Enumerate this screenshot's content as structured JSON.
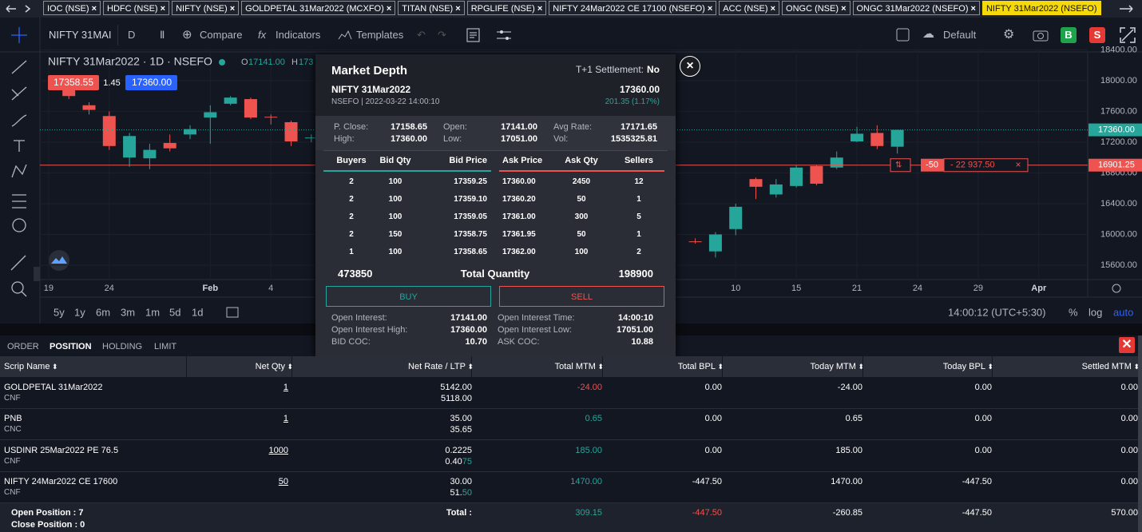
{
  "tabs": [
    "IOC (NSE)",
    "HDFC (NSE)",
    "NIFTY (NSE)",
    "GOLDPETAL 31Mar2022 (MCXFO)",
    "TITAN (NSE)",
    "RPGLIFE (NSE)",
    "NIFTY 24Mar2022 CE 17100 (NSEFO)",
    "ACC (NSE)",
    "ONGC (NSE)",
    "ONGC 31Mar2022 (NSEFO)",
    "NIFTY 31Mar2022 (NSEFO)"
  ],
  "toolbar": {
    "symbol": "NIFTY 31MAI",
    "interval": "D",
    "compare": "Compare",
    "indicators": "Indicators",
    "templates": "Templates",
    "layout": "Default",
    "buy": "B",
    "sell": "S"
  },
  "chart_data": {
    "type": "candlestick",
    "legend": "NIFTY 31Mar2022 · 1D · NSEFO",
    "ohlc": [
      {
        "label": "O",
        "value": "17141.00"
      },
      {
        "label": "H",
        "value": "173"
      }
    ],
    "bid_tag": "17358.55",
    "spread_tag": "1.45",
    "ask_tag": "17360.00",
    "x": [
      1,
      2,
      3,
      4,
      5,
      6,
      7,
      8,
      9,
      10,
      11,
      12,
      13,
      32,
      33,
      34,
      35,
      36,
      37,
      38,
      39,
      40,
      41,
      42
    ],
    "open": [
      17900,
      17680,
      17540,
      17000,
      16990,
      17190,
      17300,
      17520,
      17700,
      17760,
      17530,
      17460,
      17250,
      15910,
      15780,
      16070,
      16720,
      16520,
      16630,
      16890,
      16870,
      17210,
      17320,
      17141
    ],
    "high": [
      17960,
      17720,
      17600,
      17320,
      17180,
      17300,
      17420,
      17680,
      17800,
      17780,
      17560,
      17480,
      17300,
      15950,
      16030,
      16400,
      16740,
      16720,
      16900,
      16900,
      17080,
      17400,
      17420,
      17360
    ],
    "low": [
      17760,
      17560,
      17100,
      16880,
      16850,
      17080,
      17240,
      17180,
      17680,
      17500,
      17430,
      17150,
      17200,
      15880,
      15700,
      15990,
      16460,
      16480,
      16610,
      16640,
      16850,
      17200,
      17110,
      17051
    ],
    "close": [
      17800,
      17620,
      17150,
      17280,
      17100,
      17120,
      17370,
      17590,
      17780,
      17520,
      17520,
      17210,
      17260,
      15900,
      16000,
      16360,
      16620,
      16650,
      16870,
      16660,
      17000,
      17310,
      17150,
      17360
    ],
    "up_color": "#26a69a",
    "down_color": "#ef5350",
    "xlim": [
      -0.43,
      51.42
    ],
    "xticks": [
      {
        "value": 0,
        "label": "19"
      },
      {
        "value": 3,
        "label": "24"
      },
      {
        "value": 8,
        "label": "Feb"
      },
      {
        "value": 11,
        "label": "4"
      },
      {
        "value": 34,
        "label": "10"
      },
      {
        "value": 37,
        "label": "15"
      },
      {
        "value": 40,
        "label": "21"
      },
      {
        "value": 43,
        "label": "24"
      },
      {
        "value": 46,
        "label": "29"
      },
      {
        "value": 49,
        "label": "Apr"
      }
    ],
    "ylim": [
      15413,
      18405
    ],
    "yticks": [
      {
        "value": 18400,
        "label": "18400.00"
      },
      {
        "value": 18000,
        "label": "18000.00"
      },
      {
        "value": 17600,
        "label": "17600.00"
      },
      {
        "value": 17200,
        "label": "17200.00"
      },
      {
        "value": 16800,
        "label": "16800.00"
      },
      {
        "value": 16400,
        "label": "16400.00"
      },
      {
        "value": 16000,
        "label": "16000.00"
      },
      {
        "value": 15600,
        "label": "15600.00"
      }
    ],
    "last_price": {
      "value": 17360,
      "label": "17360.00"
    },
    "position_price": {
      "value": 16901.25,
      "label": "16901.25"
    },
    "position_qty": "-50",
    "position_pnl": "- 22 937.50",
    "ranges": [
      "5y",
      "1y",
      "6m",
      "3m",
      "1m",
      "5d",
      "1d"
    ],
    "time": "14:00:12 (UTC+5:30)",
    "scale_options": [
      "%",
      "log",
      "auto"
    ]
  },
  "market_depth": {
    "title": "Market Depth",
    "settlement_label": "T+1 Settlement:",
    "settlement": "No",
    "symbol": "NIFTY 31Mar2022",
    "ltp": "17360.00",
    "exchange": "NSEFO | 2022-03-22 14:00:10",
    "change": "201.35 (1.17%)",
    "stats": [
      [
        "P. Close:",
        "17158.65"
      ],
      [
        "Open:",
        "17141.00"
      ],
      [
        "Avg Rate:",
        "17171.65"
      ],
      [
        "High:",
        "17360.00"
      ],
      [
        "Low:",
        "17051.00"
      ],
      [
        "Vol:",
        "1535325.81"
      ]
    ],
    "columns": [
      "Buyers",
      "Bid Qty",
      "Bid Price",
      "Ask Price",
      "Ask Qty",
      "Sellers"
    ],
    "rows": [
      [
        "2",
        "100",
        "17359.25",
        "17360.00",
        "2450",
        "12"
      ],
      [
        "2",
        "100",
        "17359.10",
        "17360.20",
        "50",
        "1"
      ],
      [
        "2",
        "100",
        "17359.05",
        "17361.00",
        "300",
        "5"
      ],
      [
        "2",
        "150",
        "17358.75",
        "17361.95",
        "50",
        "1"
      ],
      [
        "1",
        "100",
        "17358.65",
        "17362.00",
        "100",
        "2"
      ]
    ],
    "total_bid": "473850",
    "total_label": "Total Quantity",
    "total_ask": "198900",
    "buy": "BUY",
    "sell": "SELL",
    "oi": [
      [
        "Open Interest:",
        "17141.00"
      ],
      [
        "Open Interest Time:",
        "14:00:10"
      ],
      [
        "Open Interest High:",
        "17360.00"
      ],
      [
        "Open Interest Low:",
        "17051.00"
      ],
      [
        "BID COC:",
        "10.70"
      ],
      [
        "ASK COC:",
        "10.88"
      ]
    ]
  },
  "positions": {
    "tabs": [
      "ORDER",
      "POSITION",
      "HOLDING",
      "LIMIT"
    ],
    "columns": [
      "Scrip Name",
      "Net Qty",
      "Net Rate / LTP",
      "Total MTM",
      "Total BPL",
      "Today MTM",
      "Today BPL",
      "Settled MTM"
    ],
    "rows": [
      {
        "name": "GOLDPETAL 31Mar2022",
        "product": "CNF",
        "net_qty": "1",
        "net_rate": "5142.00",
        "ltp": [
          "5118.00"
        ],
        "values": [
          "-24.00",
          "0.00",
          "-24.00",
          "0.00",
          "0.00"
        ]
      },
      {
        "name": "PNB",
        "product": "CNC",
        "net_qty": "1",
        "net_rate": "35.00",
        "ltp": [
          "35.65"
        ],
        "values": [
          "0.65",
          "0.00",
          "0.65",
          "0.00",
          "0.00"
        ]
      },
      {
        "name": "USDINR 25Mar2022 PE 76.5",
        "product": "CNF",
        "net_qty": "1000",
        "net_rate": "0.2225",
        "ltp": [
          "0.40",
          "75"
        ],
        "values": [
          "185.00",
          "0.00",
          "185.00",
          "0.00",
          "0.00"
        ]
      },
      {
        "name": "NIFTY 24Mar2022 CE 17600",
        "product": "CNF",
        "net_qty": "50",
        "net_rate": "30.00",
        "ltp": [
          "51.",
          "50"
        ],
        "values": [
          "1470.00",
          "-447.50",
          "1470.00",
          "-447.50",
          "0.00"
        ]
      }
    ],
    "open_position": "Open Position : 7",
    "close_position": "Close Position : 0",
    "total_label": "Total :",
    "totals": [
      "309.15",
      "-447.50",
      "-260.85",
      "-447.50",
      "570.00"
    ]
  }
}
